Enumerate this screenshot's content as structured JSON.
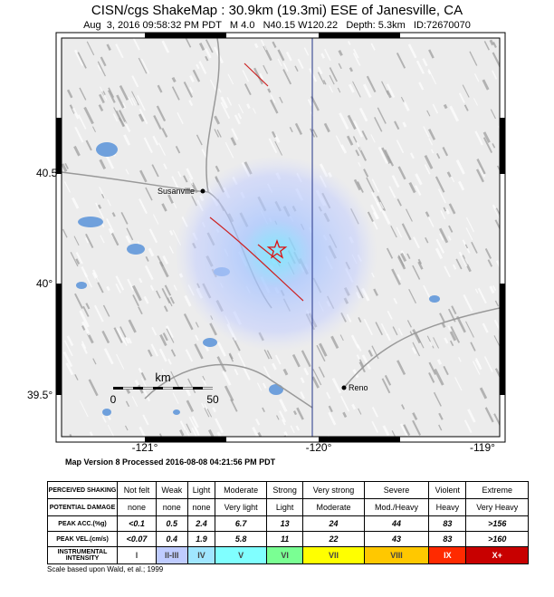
{
  "header": {
    "title": "CISN/cgs ShakeMap : 30.9km (19.3mi) ESE of Janesville, CA",
    "subtitle": "Aug  3, 2016 09:58:32 PM PDT   M 4.0   N40.15 W120.22   Depth: 5.3km   ID:72670070"
  },
  "map": {
    "lat_labels": [
      "40.5°",
      "40°",
      "39.5°"
    ],
    "lon_labels": [
      "-121°",
      "-120°",
      "-119°"
    ],
    "places": [
      "Susanville",
      "Reno"
    ],
    "scale": {
      "unit": "km",
      "start": "0",
      "end": "50"
    }
  },
  "version": "Map Version 8 Processed 2016-08-08 04:21:56 PM PDT",
  "table": {
    "rows": [
      [
        "PERCEIVED SHAKING",
        "Not felt",
        "Weak",
        "Light",
        "Moderate",
        "Strong",
        "Very strong",
        "Severe",
        "Violent",
        "Extreme"
      ],
      [
        "POTENTIAL DAMAGE",
        "none",
        "none",
        "none",
        "Very light",
        "Light",
        "Moderate",
        "Mod./Heavy",
        "Heavy",
        "Very Heavy"
      ],
      [
        "PEAK ACC.(%g)",
        "<0.1",
        "0.5",
        "2.4",
        "6.7",
        "13",
        "24",
        "44",
        "83",
        ">156"
      ],
      [
        "PEAK VEL.(cm/s)",
        "<0.07",
        "0.4",
        "1.9",
        "5.8",
        "11",
        "22",
        "43",
        "83",
        ">160"
      ],
      [
        "INSTRUMENTAL INTENSITY",
        "I",
        "II-III",
        "IV",
        "V",
        "VI",
        "VII",
        "VIII",
        "IX",
        "X+"
      ]
    ],
    "intensity_colors": [
      "#ffffff",
      "#bfccff",
      "#a0e6ff",
      "#80ffff",
      "#7aff93",
      "#ffff00",
      "#ffc800",
      "#ff2a00",
      "#c80000"
    ]
  },
  "footnote": "Scale based upon Wald, et al.; 1999"
}
